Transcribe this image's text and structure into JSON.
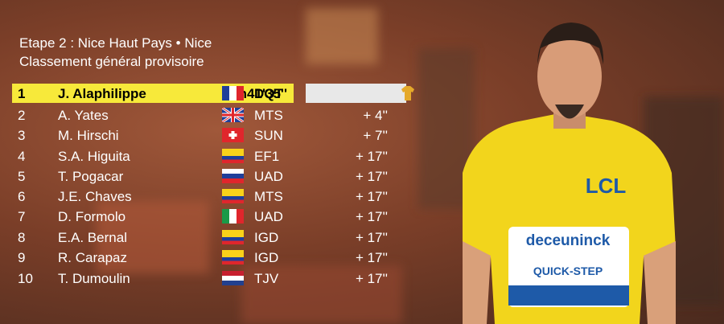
{
  "header": {
    "title": "Etape 2 : Nice Haut Pays • Nice",
    "subtitle": "Classement général provisoire"
  },
  "table": {
    "rows": [
      [
        "1",
        "J. Alaphilippe",
        "DQT",
        "8h41'35''"
      ],
      [
        "2",
        "A. Yates",
        "MTS",
        "+ 4''"
      ],
      [
        "3",
        "M. Hirschi",
        "SUN",
        "+ 7''"
      ],
      [
        "4",
        "S.A. Higuita",
        "EF1",
        "+ 17''"
      ],
      [
        "5",
        "T. Pogacar",
        "UAD",
        "+ 17''"
      ],
      [
        "6",
        "J.E. Chaves",
        "MTS",
        "+ 17''"
      ],
      [
        "7",
        "D. Formolo",
        "UAD",
        "+ 17''"
      ],
      [
        "8",
        "E.A. Bernal",
        "IGD",
        "+ 17''"
      ],
      [
        "9",
        "R. Carapaz",
        "IGD",
        "+ 17''"
      ],
      [
        "10",
        "T. Dumoulin",
        "TJV",
        "+ 17''"
      ]
    ]
  },
  "photo": {
    "jersey_texts": [
      "LCL",
      "deceuninck",
      "QUICK-STEP"
    ]
  }
}
